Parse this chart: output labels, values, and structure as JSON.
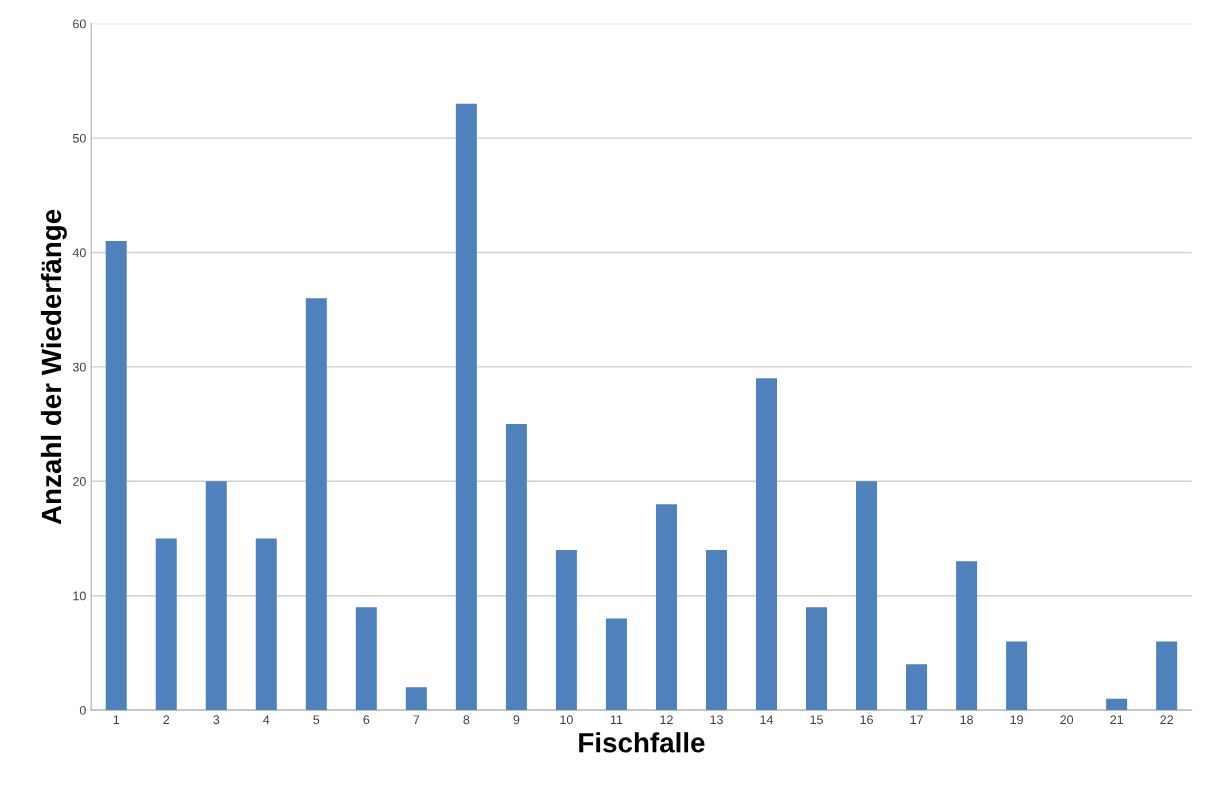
{
  "chart_data": {
    "type": "bar",
    "xlabel": "Fischfalle",
    "ylabel": "Anzahl der Wiederfänge",
    "categories": [
      "1",
      "2",
      "3",
      "4",
      "5",
      "6",
      "7",
      "8",
      "9",
      "10",
      "11",
      "12",
      "13",
      "14",
      "15",
      "16",
      "17",
      "18",
      "19",
      "20",
      "21",
      "22"
    ],
    "values": [
      41,
      15,
      20,
      15,
      36,
      9,
      2,
      53,
      25,
      14,
      8,
      18,
      14,
      29,
      9,
      20,
      4,
      13,
      6,
      0,
      1,
      6
    ],
    "color": "#4f81bd",
    "ylim": [
      0,
      60
    ],
    "yticks": [
      0,
      10,
      20,
      30,
      40,
      50,
      60
    ],
    "grid": "y",
    "legend": false
  }
}
